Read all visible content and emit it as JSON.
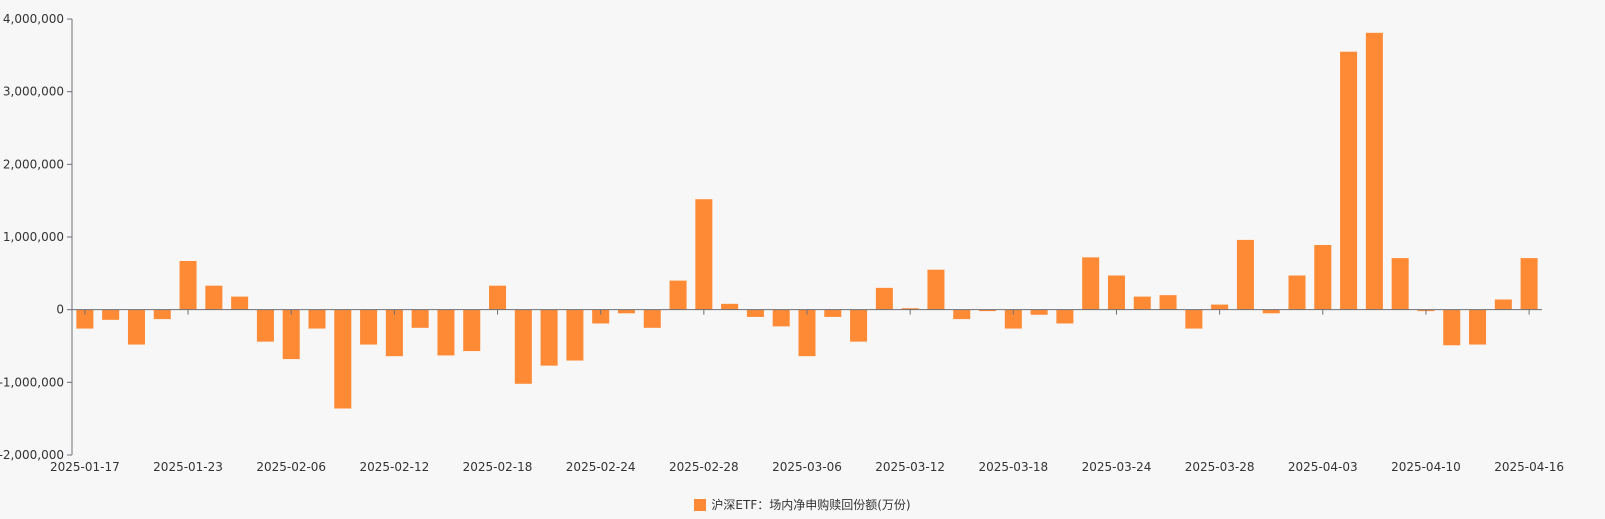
{
  "chart_data": {
    "type": "bar",
    "title": "",
    "xlabel": "",
    "ylabel": "",
    "ylim": [
      -2000000,
      4000000
    ],
    "y_ticks": [
      4000000,
      3000000,
      2000000,
      1000000,
      0,
      -1000000,
      -2000000
    ],
    "y_tick_labels": [
      "4,000,000",
      "3,000,000",
      "2,000,000",
      "1,000,000",
      "0",
      "-1,000,000",
      "-2,000,000"
    ],
    "x_tick_labels": [
      "2025-01-17",
      "2025-01-23",
      "2025-02-06",
      "2025-02-12",
      "2025-02-18",
      "2025-02-24",
      "2025-02-28",
      "2025-03-06",
      "2025-03-12",
      "2025-03-18",
      "2025-03-24",
      "2025-03-28",
      "2025-04-03",
      "2025-04-10",
      "2025-04-16"
    ],
    "x_tick_every": 4,
    "legend_position": "bottom",
    "grid": false,
    "bar_color": "#ff8a35",
    "series": [
      {
        "name": "沪深ETF：场内净申购赎回份额(万份)",
        "values": [
          -260000,
          -140000,
          -480000,
          -130000,
          670000,
          330000,
          180000,
          -440000,
          -680000,
          -260000,
          -1360000,
          -480000,
          -640000,
          -250000,
          -630000,
          -570000,
          330000,
          -1020000,
          -770000,
          -700000,
          -190000,
          -50000,
          -250000,
          400000,
          1520000,
          80000,
          -100000,
          -230000,
          -640000,
          -100000,
          -440000,
          300000,
          20000,
          550000,
          -130000,
          -20000,
          -260000,
          -70000,
          -190000,
          720000,
          470000,
          180000,
          200000,
          -260000,
          70000,
          960000,
          -50000,
          470000,
          890000,
          3550000,
          3810000,
          710000,
          -20000,
          -490000,
          -480000,
          140000,
          710000
        ]
      }
    ]
  }
}
